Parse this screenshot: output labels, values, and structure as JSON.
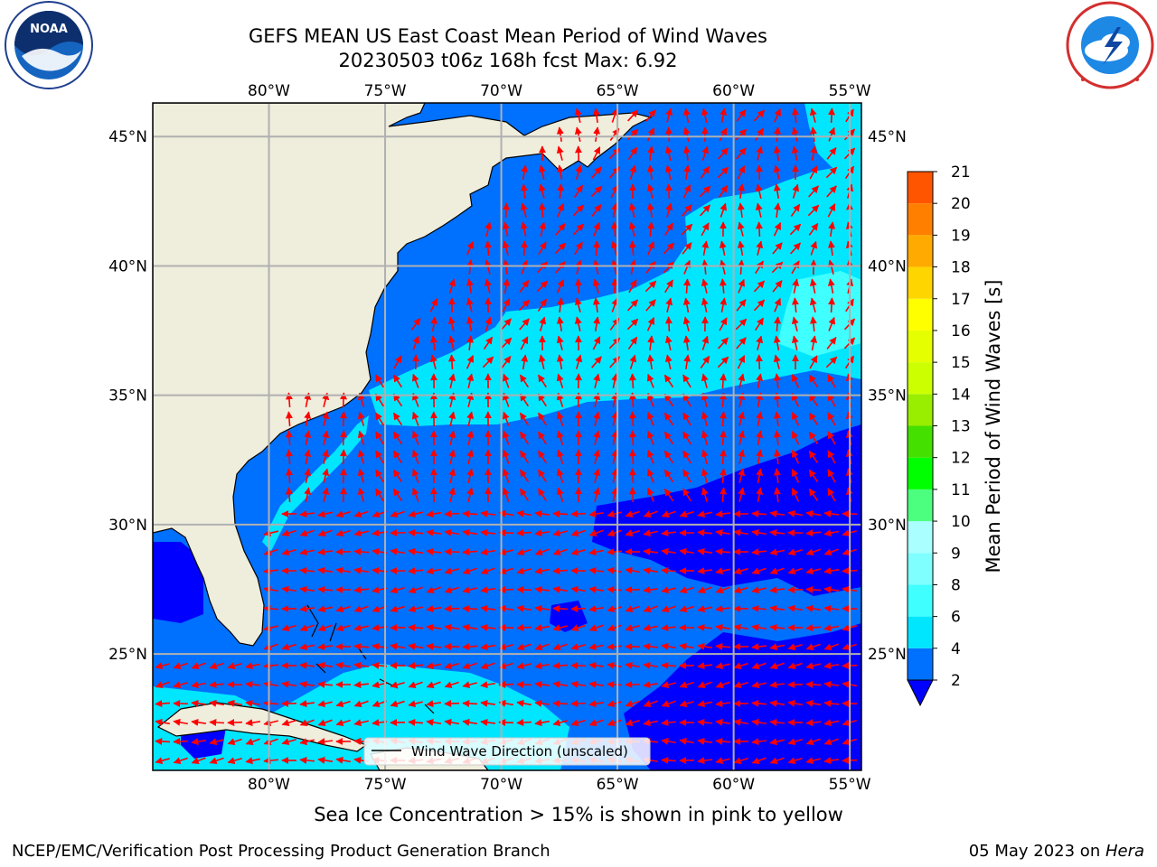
{
  "header": {
    "title_line1": "GEFS MEAN US East Coast Mean Period of Wind Waves",
    "title_line2": "20230503 t06z 168h fcst   Max: 6.92"
  },
  "logos": {
    "left": {
      "name": "NOAA",
      "icon": "noaa-logo"
    },
    "right": {
      "name": "National Weather Service",
      "icon": "nws-logo"
    }
  },
  "map": {
    "lon_labels": [
      "80°W",
      "75°W",
      "70°W",
      "65°W",
      "60°W",
      "55°W"
    ],
    "lat_labels": [
      "45°N",
      "40°N",
      "35°N",
      "30°N",
      "25°N"
    ],
    "lon_values": [
      -80,
      -75,
      -70,
      -65,
      -60,
      -55
    ],
    "lat_values": [
      45,
      40,
      35,
      30,
      25
    ],
    "extent": {
      "lon": [
        -85,
        -54.5
      ],
      "lat": [
        20.5,
        46.3
      ]
    },
    "land_color": "#efeddc",
    "arrow_color": "#ff0000",
    "legend_label": "Wind Wave Direction (unscaled)"
  },
  "colorbar": {
    "title": "Mean Period of Wind Waves [s]",
    "tick_labels": [
      "2",
      "4",
      "6",
      "8",
      "9",
      "10",
      "11",
      "12",
      "13",
      "14",
      "15",
      "16",
      "17",
      "18",
      "19",
      "20",
      "21"
    ],
    "colors": [
      "#0070ff",
      "#00e6ff",
      "#3fffff",
      "#7fffff",
      "#aaffff",
      "#4cff7f",
      "#00ff00",
      "#44e000",
      "#99ee00",
      "#ccff00",
      "#e6ff00",
      "#ffff00",
      "#ffd500",
      "#ffaa00",
      "#ff8000",
      "#ff5500",
      "#ff2a00",
      "#ff0000"
    ],
    "under_color": "#0000ff"
  },
  "chart_data": {
    "type": "heatmap",
    "title": "GEFS MEAN US East Coast Mean Period of Wind Waves",
    "subtitle": "20230503 t06z 168h fcst   Max: 6.92",
    "units": "s",
    "max_value": 6.92,
    "color_levels": [
      2,
      4,
      6,
      8,
      9,
      10,
      11,
      12,
      13,
      14,
      15,
      16,
      17,
      18,
      19,
      20,
      21
    ],
    "lon_range": [
      -85,
      -54.5
    ],
    "lat_range": [
      20.5,
      46.3
    ],
    "grid": true
  },
  "footer": {
    "ice_note": "Sea Ice Concentration > 15% is shown in pink to yellow",
    "left": "NCEP/EMC/Verification Post Processing Product Generation Branch",
    "right_date": "05 May 2023 on ",
    "right_machine": "Hera"
  }
}
